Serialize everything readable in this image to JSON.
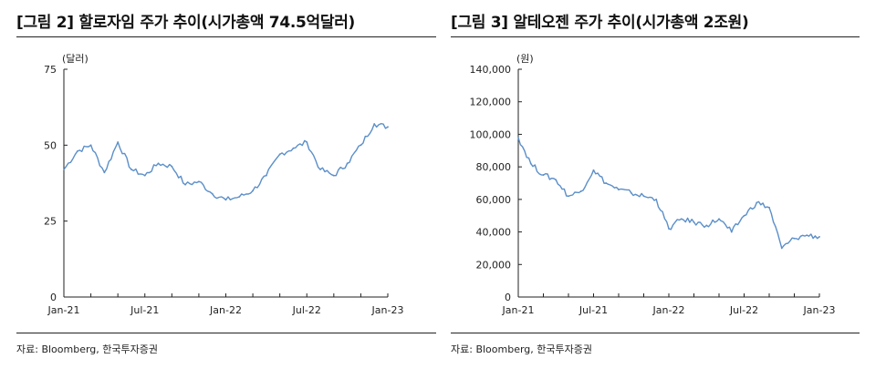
{
  "left": {
    "title": "[그림 2] 할로자임 주가 추이(시가총액 74.5억달러)",
    "source": "자료: Bloomberg, 한국투자증권"
  },
  "right": {
    "title": "[그림 3] 알테오젠 주가 추이(시가총액 2조원)",
    "source": "자료: Bloomberg, 한국투자증권"
  },
  "chart_data": [
    {
      "type": "line",
      "unit_label": "(달러)",
      "ylim": [
        0,
        75
      ],
      "yticks": [
        "0",
        "25",
        "50",
        "75"
      ],
      "xticks": [
        "Jan-21",
        "Jul-21",
        "Jan-22",
        "Jul-22",
        "Jan-23"
      ],
      "grid": false,
      "color": "#5b8fc9",
      "x": [
        "Jan-21",
        "Feb-21",
        "Mar-21",
        "Apr-21",
        "May-21",
        "Jun-21",
        "Jul-21",
        "Aug-21",
        "Sep-21",
        "Oct-21",
        "Nov-21",
        "Dec-21",
        "Jan-22",
        "Feb-22",
        "Mar-22",
        "Apr-22",
        "May-22",
        "Jun-22",
        "Jul-22",
        "Aug-22",
        "Sep-22",
        "Oct-22",
        "Nov-22",
        "Dec-22",
        "Jan-23"
      ],
      "values": [
        42,
        48,
        50,
        41,
        51,
        42,
        40,
        44,
        43,
        37,
        38,
        34,
        32,
        33,
        35,
        40,
        47,
        49,
        51,
        42,
        40,
        44,
        50,
        57,
        56
      ]
    },
    {
      "type": "line",
      "unit_label": "(원)",
      "ylim": [
        0,
        140000
      ],
      "yticks": [
        "0",
        "20,000",
        "40,000",
        "60,000",
        "80,000",
        "100,000",
        "120,000",
        "140,000"
      ],
      "xticks": [
        "Jan-21",
        "Jul-21",
        "Jan-22",
        "Jul-22",
        "Jan-23"
      ],
      "grid": false,
      "color": "#5b8fc9",
      "x": [
        "Jan-21",
        "Feb-21",
        "Mar-21",
        "Apr-21",
        "May-21",
        "Jun-21",
        "Jul-21",
        "Aug-21",
        "Sep-21",
        "Oct-21",
        "Nov-21",
        "Dec-21",
        "Jan-22",
        "Feb-22",
        "Mar-22",
        "Apr-22",
        "May-22",
        "Jun-22",
        "Jul-22",
        "Aug-22",
        "Sep-22",
        "Oct-22",
        "Nov-22",
        "Dec-22",
        "Jan-23"
      ],
      "values": [
        98000,
        82000,
        75000,
        72000,
        62000,
        65000,
        78000,
        70000,
        66000,
        64000,
        62000,
        60000,
        42000,
        48000,
        46000,
        44000,
        48000,
        40000,
        50000,
        58000,
        55000,
        30000,
        36000,
        38000,
        37000
      ]
    }
  ]
}
